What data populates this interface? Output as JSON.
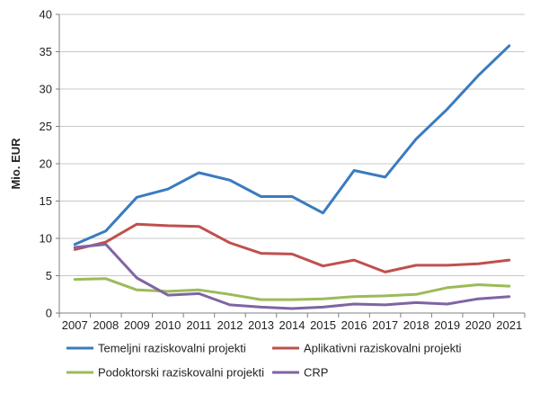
{
  "chart_data": {
    "type": "line",
    "title": "",
    "xlabel": "",
    "ylabel": "Mio. EUR",
    "ylim": [
      0,
      40
    ],
    "yticks": [
      0,
      5,
      10,
      15,
      20,
      25,
      30,
      35,
      40
    ],
    "grid": "horizontal",
    "legend_position": "bottom",
    "categories": [
      "2007",
      "2008",
      "2009",
      "2010",
      "2011",
      "2012",
      "2013",
      "2014",
      "2015",
      "2016",
      "2017",
      "2018",
      "2019",
      "2020",
      "2021"
    ],
    "series": [
      {
        "name": "Temeljni raziskovalni projekti",
        "color": "#3a7bbf",
        "values": [
          9.2,
          11.0,
          15.5,
          16.6,
          18.8,
          17.8,
          15.6,
          15.6,
          13.4,
          19.1,
          18.2,
          23.3,
          27.3,
          31.8,
          35.8
        ]
      },
      {
        "name": "Aplikativni raziskovalni projekti",
        "color": "#c0504d",
        "values": [
          8.5,
          9.5,
          11.9,
          11.7,
          11.6,
          9.4,
          8.0,
          7.9,
          6.3,
          7.1,
          5.5,
          6.4,
          6.4,
          6.6,
          7.1
        ]
      },
      {
        "name": "Podoktorski raziskovalni projekti",
        "color": "#9bbb59",
        "values": [
          4.5,
          4.6,
          3.1,
          2.9,
          3.1,
          2.5,
          1.8,
          1.8,
          1.9,
          2.2,
          2.3,
          2.5,
          3.4,
          3.8,
          3.6
        ]
      },
      {
        "name": "CRP",
        "color": "#8064a2",
        "values": [
          8.8,
          9.2,
          4.7,
          2.4,
          2.6,
          1.1,
          0.8,
          0.6,
          0.8,
          1.2,
          1.1,
          1.4,
          1.2,
          1.9,
          2.2
        ]
      }
    ]
  }
}
